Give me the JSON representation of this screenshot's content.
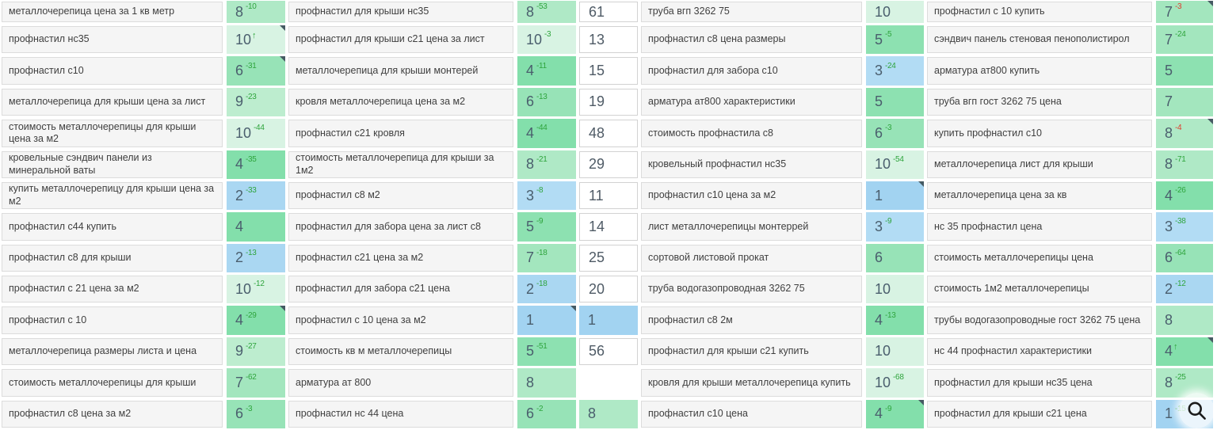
{
  "colors": {
    "delta_up": "#2ea43c",
    "delta_down": "#e13a2c",
    "value_text": "#4a5e6d",
    "keyword_text": "#3f3f3f",
    "note_marker": "#455a63",
    "keyword_cell_bg": "#f5f5f5",
    "keyword_cell_border": "#dcdcdc",
    "secondary_cell_border": "#d2d2d2",
    "position_colors": {
      "1": "#a2d3f1",
      "2": "#aad7f2",
      "3": "#b2dcf4",
      "4": "#83dfab",
      "5": "#8de1b1",
      "6": "#97e3b7",
      "7": "#a3e6be",
      "8": "#afe9c6",
      "9": "#bdedcf",
      "10": "#d8f3e3"
    }
  },
  "zoom_button": {
    "icon": "magnifier-icon"
  },
  "table": {
    "rows": [
      {
        "cells": [
          {
            "t": "kw",
            "text": "металлочерепица цена за 1 кв метр"
          },
          {
            "t": "pos",
            "v": 8,
            "d": "-10",
            "dc": "up"
          },
          {
            "t": "kw",
            "text": "профнастил для крыши нс35"
          },
          {
            "t": "pos",
            "v": 8,
            "d": "-53",
            "dc": "up"
          },
          {
            "t": "mid",
            "v": 61
          },
          {
            "t": "kw",
            "text": "труба вгп 3262 75"
          },
          {
            "t": "pos",
            "v": 10
          },
          {
            "t": "kw",
            "text": "профнастил с 10 купить"
          },
          {
            "t": "pos",
            "v": 7,
            "d": "-3",
            "dc": "down",
            "note": true
          }
        ]
      },
      {
        "cells": [
          {
            "t": "kw",
            "text": "профнастил нс35"
          },
          {
            "t": "pos",
            "v": 10,
            "arrow": true,
            "note": true
          },
          {
            "t": "kw",
            "text": "профнастил для крыши с21 цена за лист"
          },
          {
            "t": "pos",
            "v": 10,
            "d": "-3",
            "dc": "up"
          },
          {
            "t": "mid",
            "v": 13
          },
          {
            "t": "kw",
            "text": "профнастил с8 цена размеры"
          },
          {
            "t": "pos",
            "v": 5,
            "d": "-5",
            "dc": "up"
          },
          {
            "t": "kw",
            "text": "сэндвич панель стеновая пенополистирол"
          },
          {
            "t": "pos",
            "v": 7,
            "d": "-24",
            "dc": "up"
          }
        ]
      },
      {
        "cells": [
          {
            "t": "kw",
            "text": "профнастил с10"
          },
          {
            "t": "pos",
            "v": 6,
            "d": "-31",
            "dc": "up",
            "note": true
          },
          {
            "t": "kw",
            "text": "металлочерепица для крыши монтерей"
          },
          {
            "t": "pos",
            "v": 4,
            "d": "-11",
            "dc": "up"
          },
          {
            "t": "mid",
            "v": 15
          },
          {
            "t": "kw",
            "text": "профнастил для забора с10"
          },
          {
            "t": "pos",
            "v": 3,
            "d": "-24",
            "dc": "up"
          },
          {
            "t": "kw",
            "text": "арматура ат800 купить"
          },
          {
            "t": "pos",
            "v": 5
          }
        ]
      },
      {
        "cells": [
          {
            "t": "kw",
            "text": "металлочерепица для крыши цена за лист"
          },
          {
            "t": "pos",
            "v": 9,
            "d": "-23",
            "dc": "up"
          },
          {
            "t": "kw",
            "text": "кровля металлочерепица цена за м2"
          },
          {
            "t": "pos",
            "v": 6,
            "d": "-13",
            "dc": "up"
          },
          {
            "t": "mid",
            "v": 19
          },
          {
            "t": "kw",
            "text": "арматура ат800 характеристики"
          },
          {
            "t": "pos",
            "v": 5
          },
          {
            "t": "kw",
            "text": "труба вгп гост 3262 75 цена"
          },
          {
            "t": "pos",
            "v": 7
          }
        ]
      },
      {
        "cells": [
          {
            "t": "kw",
            "text": "стоимость металлочерепицы для крыши цена за м2"
          },
          {
            "t": "pos",
            "v": 10,
            "d": "-44",
            "dc": "up"
          },
          {
            "t": "kw",
            "text": "профнастил с21 кровля"
          },
          {
            "t": "pos",
            "v": 4,
            "d": "-44",
            "dc": "up"
          },
          {
            "t": "mid",
            "v": 48
          },
          {
            "t": "kw",
            "text": "стоимость профнастила с8"
          },
          {
            "t": "pos",
            "v": 6,
            "d": "-3",
            "dc": "up"
          },
          {
            "t": "kw",
            "text": "купить профнастил с10"
          },
          {
            "t": "pos",
            "v": 8,
            "d": "-4",
            "dc": "down",
            "note": true
          }
        ]
      },
      {
        "cells": [
          {
            "t": "kw",
            "text": "кровельные сэндвич панели из минеральной ваты"
          },
          {
            "t": "pos",
            "v": 4,
            "d": "-35",
            "dc": "up"
          },
          {
            "t": "kw",
            "text": "стоимость металлочерепица для крыши за 1м2"
          },
          {
            "t": "pos",
            "v": 8,
            "d": "-21",
            "dc": "up"
          },
          {
            "t": "mid",
            "v": 29
          },
          {
            "t": "kw",
            "text": "кровельный профнастил нс35"
          },
          {
            "t": "pos",
            "v": 10,
            "d": "-54",
            "dc": "up"
          },
          {
            "t": "kw",
            "text": "металлочерепица лист для крыши"
          },
          {
            "t": "pos",
            "v": 8,
            "d": "-71",
            "dc": "up"
          }
        ]
      },
      {
        "cells": [
          {
            "t": "kw",
            "text": "купить металлочерепицу для крыши цена за м2"
          },
          {
            "t": "pos",
            "v": 2,
            "d": "-33",
            "dc": "up"
          },
          {
            "t": "kw",
            "text": "профнастил с8 м2"
          },
          {
            "t": "pos",
            "v": 3,
            "d": "-8",
            "dc": "up"
          },
          {
            "t": "mid",
            "v": 11
          },
          {
            "t": "kw",
            "text": "профнастил с10 цена за м2"
          },
          {
            "t": "pos",
            "v": 1,
            "note": true
          },
          {
            "t": "kw",
            "text": "металлочерепица цена за кв"
          },
          {
            "t": "pos",
            "v": 4,
            "d": "-26",
            "dc": "up"
          }
        ]
      },
      {
        "cells": [
          {
            "t": "kw",
            "text": "профнастил с44 купить"
          },
          {
            "t": "pos",
            "v": 4
          },
          {
            "t": "kw",
            "text": "профнастил для забора цена за лист с8"
          },
          {
            "t": "pos",
            "v": 5,
            "d": "-9",
            "dc": "up"
          },
          {
            "t": "mid",
            "v": 14
          },
          {
            "t": "kw",
            "text": "лист металлочерепицы монтеррей"
          },
          {
            "t": "pos",
            "v": 3,
            "d": "-9",
            "dc": "up"
          },
          {
            "t": "kw",
            "text": "нс 35 профнастил цена"
          },
          {
            "t": "pos",
            "v": 3,
            "d": "-38",
            "dc": "up"
          }
        ]
      },
      {
        "cells": [
          {
            "t": "kw",
            "text": "профнастил с8 для крыши"
          },
          {
            "t": "pos",
            "v": 2,
            "d": "-13",
            "dc": "up"
          },
          {
            "t": "kw",
            "text": "профнастил с21 цена за м2"
          },
          {
            "t": "pos",
            "v": 7,
            "d": "-18",
            "dc": "up"
          },
          {
            "t": "mid",
            "v": 25
          },
          {
            "t": "kw",
            "text": "сортовой листовой прокат"
          },
          {
            "t": "pos",
            "v": 6
          },
          {
            "t": "kw",
            "text": "стоимость металлочерепицы цена"
          },
          {
            "t": "pos",
            "v": 6,
            "d": "-64",
            "dc": "up"
          }
        ]
      },
      {
        "cells": [
          {
            "t": "kw",
            "text": "профнастил с 21 цена за м2"
          },
          {
            "t": "pos",
            "v": 10,
            "d": "-12",
            "dc": "up"
          },
          {
            "t": "kw",
            "text": "профнастил для забора с21 цена"
          },
          {
            "t": "pos",
            "v": 2,
            "d": "-18",
            "dc": "up"
          },
          {
            "t": "mid",
            "v": 20
          },
          {
            "t": "kw",
            "text": "труба водогазопроводная 3262 75"
          },
          {
            "t": "pos",
            "v": 10
          },
          {
            "t": "kw",
            "text": "стоимость 1м2 металлочерепицы"
          },
          {
            "t": "pos",
            "v": 2,
            "d": "-12",
            "dc": "up"
          }
        ]
      },
      {
        "cells": [
          {
            "t": "kw",
            "text": "профнастил с 10"
          },
          {
            "t": "pos",
            "v": 4,
            "d": "-29",
            "dc": "up",
            "note": true
          },
          {
            "t": "kw",
            "text": "профнастил с 10 цена за м2"
          },
          {
            "t": "pos",
            "v": 1,
            "note": true
          },
          {
            "t": "mid",
            "v": 1
          },
          {
            "t": "kw",
            "text": "профнастил с8 2м"
          },
          {
            "t": "pos",
            "v": 4,
            "d": "-13",
            "dc": "up"
          },
          {
            "t": "kw",
            "text": "трубы водогазопроводные гост 3262 75 цена"
          },
          {
            "t": "pos",
            "v": 8
          }
        ]
      },
      {
        "cells": [
          {
            "t": "kw",
            "text": "металлочерепица размеры листа и цена"
          },
          {
            "t": "pos",
            "v": 9,
            "d": "-27",
            "dc": "up"
          },
          {
            "t": "kw",
            "text": "стоимость кв м металлочерепицы"
          },
          {
            "t": "pos",
            "v": 5,
            "d": "-51",
            "dc": "up"
          },
          {
            "t": "mid",
            "v": 56
          },
          {
            "t": "kw",
            "text": "профнастил для крыши с21 купить"
          },
          {
            "t": "pos",
            "v": 10
          },
          {
            "t": "kw",
            "text": "нс 44 профнастил характеристики"
          },
          {
            "t": "pos",
            "v": 4,
            "arrow": true,
            "note": true
          }
        ]
      },
      {
        "cells": [
          {
            "t": "kw",
            "text": "стоимость металлочерепицы для крыши"
          },
          {
            "t": "pos",
            "v": 7,
            "d": "-62",
            "dc": "up"
          },
          {
            "t": "kw",
            "text": "арматура ат 800"
          },
          {
            "t": "pos",
            "v": 8
          },
          {
            "t": "mid",
            "v": null
          },
          {
            "t": "kw",
            "text": "кровля для крыши металлочерепица купить"
          },
          {
            "t": "pos",
            "v": 10,
            "d": "-68",
            "dc": "up"
          },
          {
            "t": "kw",
            "text": "профнастил для крыши нс35 цена"
          },
          {
            "t": "pos",
            "v": 8,
            "d": "-25",
            "dc": "up"
          }
        ]
      },
      {
        "cells": [
          {
            "t": "kw",
            "text": "профнастил с8 цена за м2"
          },
          {
            "t": "pos",
            "v": 6,
            "d": "-3",
            "dc": "up"
          },
          {
            "t": "kw",
            "text": "профнастил нс 44 цена"
          },
          {
            "t": "pos",
            "v": 6,
            "d": "-2",
            "dc": "up"
          },
          {
            "t": "mid",
            "v": 8
          },
          {
            "t": "kw",
            "text": "профнастил с10 цена"
          },
          {
            "t": "pos",
            "v": 4,
            "d": "-9",
            "dc": "up",
            "note": true
          },
          {
            "t": "kw",
            "text": "профнастил для крыши с21 цена"
          },
          {
            "t": "pos",
            "v": 1,
            "d": "-15",
            "dc": "up"
          }
        ]
      }
    ]
  }
}
